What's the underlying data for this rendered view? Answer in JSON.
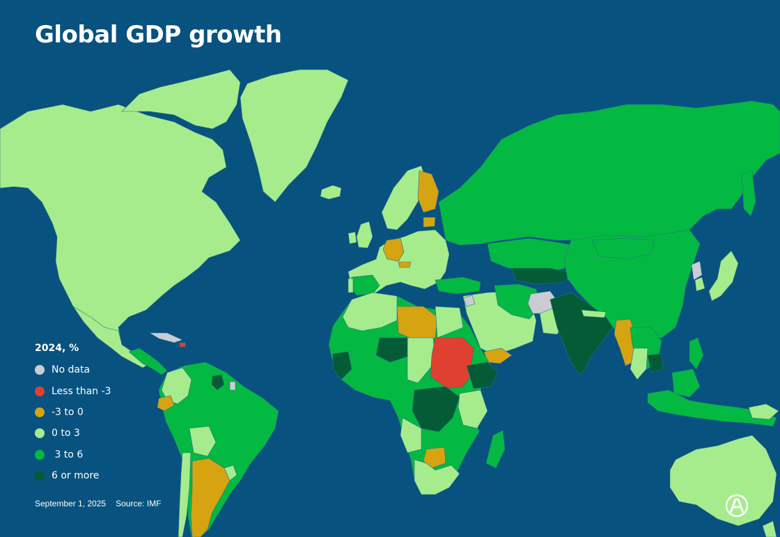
{
  "title": "Global GDP growth",
  "legend": {
    "title": "2024, %",
    "items": [
      {
        "key": "nodata",
        "label": "No data",
        "color": "#c9cdd3"
      },
      {
        "key": "lt_m3",
        "label": "Less than -3",
        "color": "#e0402f"
      },
      {
        "key": "m3_0",
        "label": "-3 to 0",
        "color": "#d6a311"
      },
      {
        "key": "0_3",
        "label": "0 to 3",
        "color": "#a6ec8d"
      },
      {
        "key": "3_6",
        "label": " 3 to 6",
        "color": "#03b942"
      },
      {
        "key": "6plus",
        "label": "6 or more",
        "color": "#035c35"
      }
    ]
  },
  "footer": {
    "date": "September 1, 2025",
    "source": "Source: IMF"
  },
  "colors": {
    "ocean": "#07527f",
    "border": "#2a6e86",
    "text": "#ffffff"
  },
  "logo": {
    "icon": "aa-agency-logo"
  }
}
